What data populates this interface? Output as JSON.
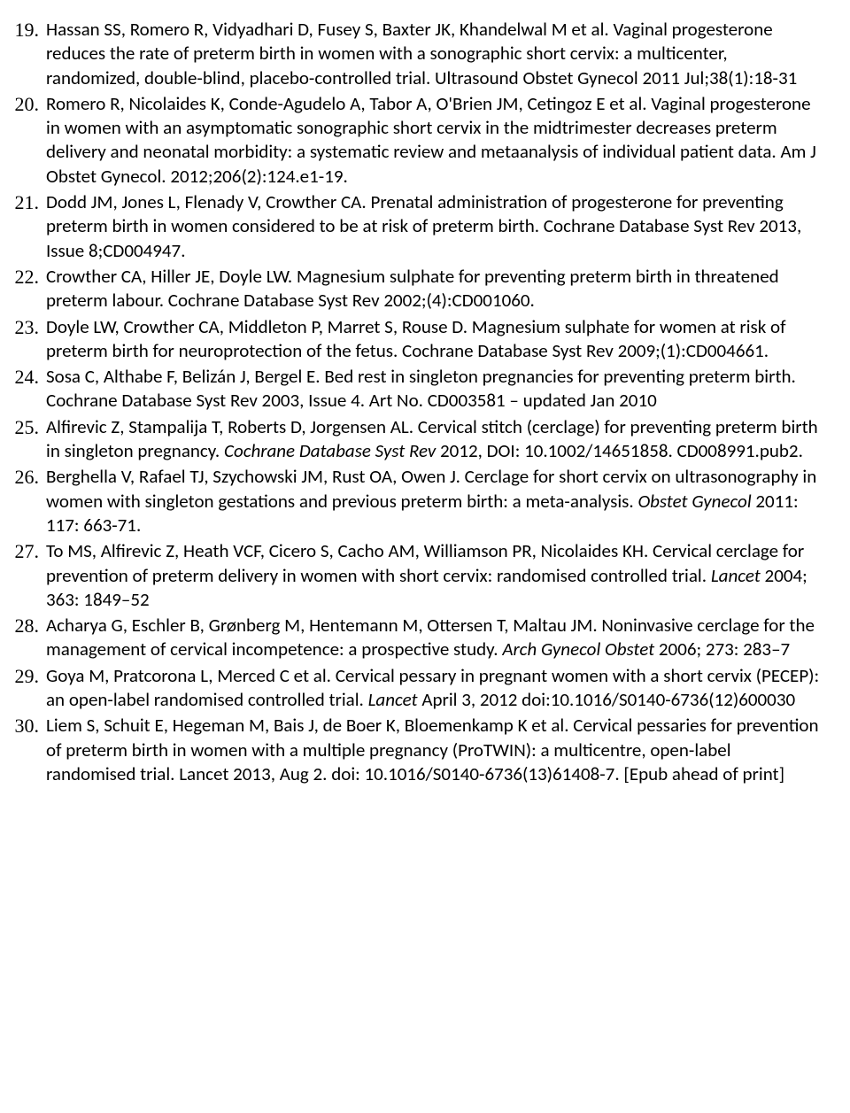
{
  "references": [
    {
      "num": "19.",
      "text": "Hassan SS, Romero R, Vidyadhari D, Fusey S, Baxter JK, Khandelwal M et al. Vaginal progesterone reduces the rate of preterm birth in women with a sonographic short cervix: a multicenter, randomized, double-blind, placebo-controlled trial. Ultrasound Obstet Gynecol 2011 Jul;38(1):18-31"
    },
    {
      "num": "20.",
      "text": "Romero R, Nicolaides K, Conde-Agudelo A, Tabor A, O'Brien JM, Cetingoz E et al. Vaginal progesterone in women with an asymptomatic sonographic short cervix in the midtrimester decreases preterm delivery and neonatal morbidity: a systematic review and metaanalysis of individual patient data. Am J Obstet Gynecol. 2012;206(2):124.e1-19."
    },
    {
      "num": "21.",
      "text": "Dodd JM, Jones L, Flenady V, Crowther CA. Prenatal administration of progesterone for preventing preterm birth in women considered to be at risk of preterm birth. Cochrane Database Syst Rev 2013, Issue 8;CD004947."
    },
    {
      "num": "22.",
      "text": "Crowther CA, Hiller JE, Doyle LW. Magnesium sulphate for preventing preterm birth in threatened preterm labour. Cochrane Database Syst Rev 2002;(4):CD001060."
    },
    {
      "num": "23.",
      "text": "Doyle LW, Crowther CA, Middleton P, Marret S, Rouse D. Magnesium sulphate for women at risk of preterm birth for neuroprotection of the fetus. Cochrane Database Syst Rev 2009;(1):CD004661."
    },
    {
      "num": "24.",
      "text": "Sosa C, Althabe F, Belizán J, Bergel E. Bed rest in singleton pregnancies for preventing preterm birth. Cochrane Database Syst Rev 2003, Issue 4. Art No. CD003581 – updated Jan 2010"
    },
    {
      "num": "25.",
      "parts": [
        {
          "text": "Alfirevic Z, Stampalija T, Roberts D, Jorgensen AL. Cervical stitch (cerclage) for preventing preterm birth in singleton pregnancy. ",
          "italic": false
        },
        {
          "text": "Cochrane Database Syst Rev ",
          "italic": true
        },
        {
          "text": "2012, DOI: 10.1002/14651858. CD008991.pub2.",
          "italic": false
        }
      ]
    },
    {
      "num": "26.",
      "parts": [
        {
          "text": "Berghella V, Rafael TJ, Szychowski JM, Rust OA, Owen J.  Cerclage for short cervix on ultrasonography in women with singleton gestations and previous preterm birth: a meta-analysis. ",
          "italic": false
        },
        {
          "text": "Obstet Gynecol ",
          "italic": true
        },
        {
          "text": "2011: 117: 663-71.",
          "italic": false
        }
      ]
    },
    {
      "num": "27.",
      "parts": [
        {
          "text": "To MS, Alfirevic Z, Heath VCF, Cicero S, Cacho AM, Williamson PR, Nicolaides KH. Cervical cerclage for prevention of preterm delivery in women with short cervix: randomised controlled trial. ",
          "italic": false
        },
        {
          "text": "Lancet ",
          "italic": true
        },
        {
          "text": "2004; 363: 1849–52",
          "italic": false
        }
      ]
    },
    {
      "num": "28.",
      "parts": [
        {
          "text": "Acharya G, Eschler B, Grønberg M, Hentemann M, Ottersen T, Maltau JM. Noninvasive cerclage for the management of cervical incompetence: a prospective study. ",
          "italic": false
        },
        {
          "text": "Arch Gynecol Obstet ",
          "italic": true
        },
        {
          "text": "2006; 273: 283–7",
          "italic": false
        }
      ]
    },
    {
      "num": "29.",
      "parts": [
        {
          "text": "Goya M, Pratcorona L, Merced C et al. Cervical pessary in pregnant women with a short cervix (PECEP): an open-label randomised controlled trial. ",
          "italic": false
        },
        {
          "text": "Lancet  ",
          "italic": true
        },
        {
          "text": "April 3, 2012 doi:10.1016/S0140-6736(12)600030",
          "italic": false
        }
      ]
    },
    {
      "num": "30.",
      "text": "Liem S, Schuit E, Hegeman M, Bais J, de Boer K, Bloemenkamp K et al. Cervical pessaries for prevention of preterm birth in women with a multiple pregnancy (ProTWIN): a multicentre, open-label randomised trial. Lancet 2013, Aug 2. doi: 10.1016/S0140-6736(13)61408-7. [Epub ahead of print]"
    }
  ],
  "style": {
    "background_color": "#ffffff",
    "text_color": "#000000",
    "body_font_family": "Calibri, sans-serif",
    "body_font_size": 21,
    "number_font_family": "Times New Roman, serif",
    "number_font_size": 22,
    "line_height": 1.3
  }
}
